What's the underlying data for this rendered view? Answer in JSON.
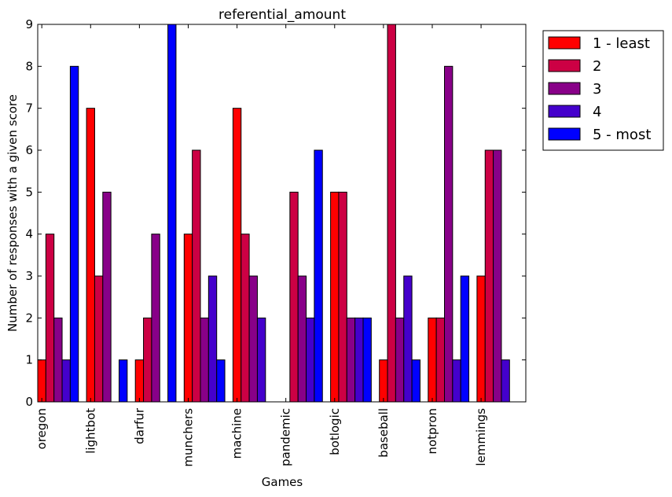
{
  "chart_data": {
    "type": "bar",
    "title": "referential_amount",
    "xlabel": "Games",
    "ylabel": "Number of responses with a given score",
    "ylim": [
      0,
      9
    ],
    "yticks": [
      0,
      1,
      2,
      3,
      4,
      5,
      6,
      7,
      8,
      9
    ],
    "categories": [
      "oregon",
      "lightbot",
      "darfur",
      "munchers",
      "machine",
      "pandemic",
      "botlogic",
      "baseball",
      "notpron",
      "lemmings"
    ],
    "series": [
      {
        "name": "1 - least",
        "color": "#ff0000",
        "values": [
          1,
          7,
          1,
          4,
          7,
          0,
          5,
          1,
          2,
          3
        ]
      },
      {
        "name": "2",
        "color": "#cc0044",
        "values": [
          4,
          3,
          2,
          6,
          4,
          5,
          5,
          9,
          2,
          6
        ]
      },
      {
        "name": "3",
        "color": "#880088",
        "values": [
          2,
          5,
          4,
          2,
          3,
          3,
          2,
          2,
          8,
          6
        ]
      },
      {
        "name": "4",
        "color": "#4400cc",
        "values": [
          1,
          0,
          0,
          3,
          2,
          2,
          2,
          3,
          1,
          1
        ]
      },
      {
        "name": "5 - most",
        "color": "#0000ff",
        "values": [
          8,
          1,
          9,
          1,
          0,
          6,
          2,
          1,
          3,
          0
        ]
      }
    ],
    "grid": false,
    "legend_position": "outside-top-right"
  }
}
